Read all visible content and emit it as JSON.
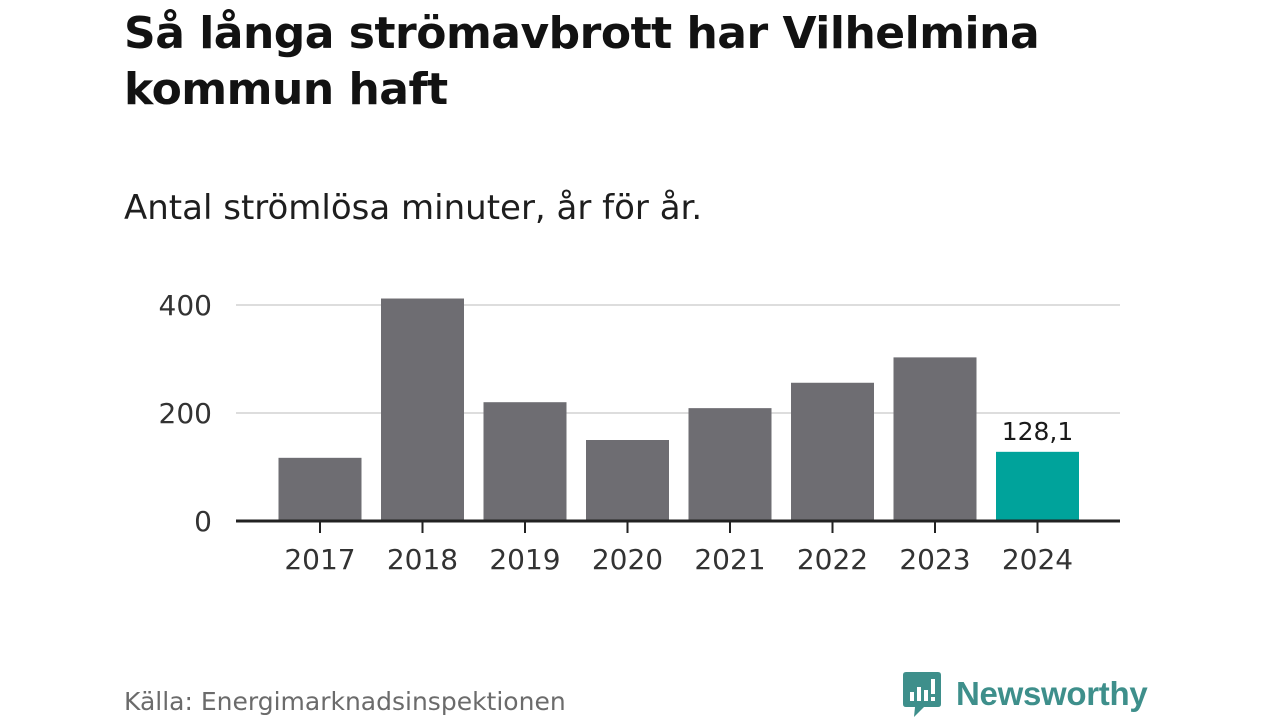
{
  "chart_data": {
    "type": "bar",
    "title": "Så långa strömavbrott har Vilhelmina kommun haft",
    "subtitle": "Antal strömlösa minuter, år för år.",
    "categories": [
      "2017",
      "2018",
      "2019",
      "2020",
      "2021",
      "2022",
      "2023",
      "2024"
    ],
    "values": [
      117,
      412,
      220,
      150,
      209,
      256,
      303,
      128.1
    ],
    "highlight_index": 7,
    "highlight_label": "128,1",
    "xlabel": "",
    "ylabel": "",
    "ylim": [
      0,
      400
    ],
    "yticks": [
      0,
      200,
      400
    ],
    "ytick_labels": [
      "0",
      "200",
      "400"
    ],
    "grid": true,
    "colors": {
      "bar": "#6e6d72",
      "highlight": "#00a39b",
      "grid": "#dddddd",
      "axis": "#222222"
    }
  },
  "footer": {
    "source": "Källa: Energimarknadsinspektionen",
    "brand": "Newsworthy",
    "brand_icon": "chat-bar-chart-icon",
    "brand_color": "#3e8f8b"
  }
}
